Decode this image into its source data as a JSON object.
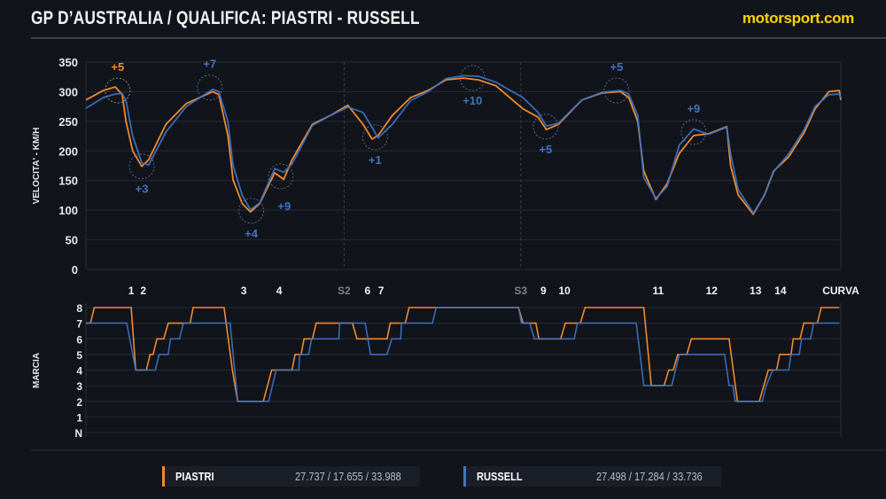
{
  "header": {
    "title": "GP D’AUSTRALIA / QUALIFICA: PIASTRI - RUSSELL",
    "logo": "motorsport.com"
  },
  "colors": {
    "background": "#11141b",
    "piastri": "#f08a2c",
    "russell": "#3f74c4",
    "grid": "#262b36",
    "logo": "#ffd200"
  },
  "legend": [
    {
      "name": "PIASTRI",
      "times": "27.737 / 17.655 / 33.988",
      "color": "#f08a2c"
    },
    {
      "name": "RUSSELL",
      "times": "27.498 / 17.284 / 33.736",
      "color": "#3f74c4"
    }
  ],
  "chart_data": [
    {
      "type": "line",
      "ylabel": "VELOCITA' - KM/H",
      "ylim": [
        0,
        350
      ],
      "yticks": [
        "0",
        "50",
        "100",
        "150",
        "200",
        "250",
        "300",
        "350"
      ],
      "xlim": [
        0,
        100
      ],
      "grid": true,
      "x": [
        0,
        2.3,
        3.9,
        4.8,
        5.3,
        6.2,
        7.4,
        8.3,
        10.6,
        13.3,
        16.8,
        17.6,
        18.8,
        19.5,
        20.7,
        21.8,
        23.0,
        25.0,
        26.2,
        27.3,
        30.0,
        32.4,
        34.7,
        36.7,
        37.9,
        38.7,
        40.6,
        43.0,
        45.3,
        47.7,
        50.0,
        52.0,
        54.3,
        57.9,
        59.9,
        61.0,
        62.6,
        65.7,
        68.4,
        70.8,
        71.9,
        73.1,
        73.9,
        75.5,
        77.0,
        78.6,
        80.5,
        82.5,
        84.9,
        85.4,
        86.4,
        88.4,
        89.9,
        91.1,
        93.1,
        95.1,
        96.6,
        98.4,
        99.8,
        100
      ],
      "series": [
        {
          "name": "PIASTRI",
          "color": "#f08a2c",
          "values": [
            286,
            302,
            308,
            295,
            250,
            200,
            174,
            185,
            245,
            280,
            300,
            295,
            226,
            151,
            111,
            97,
            111,
            163,
            152,
            185,
            245,
            260,
            277,
            245,
            220,
            226,
            260,
            290,
            302,
            320,
            323,
            320,
            310,
            271,
            257,
            236,
            245,
            286,
            298,
            300,
            290,
            250,
            166,
            118,
            145,
            196,
            226,
            229,
            241,
            175,
            126,
            93,
            126,
            166,
            190,
            230,
            271,
            300,
            302,
            286
          ]
        },
        {
          "name": "RUSSELL",
          "color": "#3f74c4",
          "values": [
            272,
            290,
            296,
            297,
            285,
            225,
            180,
            176,
            232,
            275,
            304,
            300,
            250,
            175,
            125,
            101,
            112,
            170,
            164,
            178,
            243,
            260,
            274,
            265,
            240,
            222,
            245,
            285,
            300,
            322,
            327,
            326,
            316,
            290,
            265,
            242,
            247,
            286,
            299,
            302,
            296,
            260,
            155,
            120,
            140,
            210,
            237,
            228,
            240,
            195,
            135,
            95,
            125,
            165,
            195,
            235,
            275,
            295,
            296,
            290
          ]
        }
      ],
      "corners": [
        {
          "label": "1",
          "x": 6.0
        },
        {
          "label": "2",
          "x": 7.6
        },
        {
          "label": "3",
          "x": 20.9
        },
        {
          "label": "4",
          "x": 25.6
        },
        {
          "label": "S2",
          "x": 34.2,
          "sector": true
        },
        {
          "label": "6",
          "x": 37.3
        },
        {
          "label": "7",
          "x": 39.1
        },
        {
          "label": "S3",
          "x": 57.6,
          "sector": true
        },
        {
          "label": "9",
          "x": 60.6
        },
        {
          "label": "10",
          "x": 63.4
        },
        {
          "label": "11",
          "x": 75.8
        },
        {
          "label": "12",
          "x": 82.9
        },
        {
          "label": "13",
          "x": 88.7
        },
        {
          "label": "14",
          "x": 92.0
        },
        {
          "label": "CURVA",
          "x": 100
        }
      ],
      "annotations": [
        {
          "text": "+5",
          "x": 4.2,
          "y": 302,
          "color": "#f08a2c",
          "pos": "above"
        },
        {
          "text": "+3",
          "x": 7.4,
          "y": 174,
          "color": "#3f74c4",
          "pos": "below"
        },
        {
          "text": "+7",
          "x": 16.4,
          "y": 307,
          "color": "#3f74c4",
          "pos": "above"
        },
        {
          "text": "+4",
          "x": 21.9,
          "y": 99,
          "color": "#3f74c4",
          "pos": "below"
        },
        {
          "text": "+9",
          "x": 25.8,
          "y": 157,
          "color": "#3f74c4",
          "pos": "below-right"
        },
        {
          "text": "+1",
          "x": 38.3,
          "y": 223,
          "color": "#3f74c4",
          "pos": "below"
        },
        {
          "text": "+10",
          "x": 51.2,
          "y": 323,
          "color": "#3f74c4",
          "pos": "below"
        },
        {
          "text": "+5",
          "x": 60.9,
          "y": 241,
          "color": "#3f74c4",
          "pos": "below"
        },
        {
          "text": "+5",
          "x": 70.3,
          "y": 302,
          "color": "#3f74c4",
          "pos": "above"
        },
        {
          "text": "+9",
          "x": 80.5,
          "y": 232,
          "color": "#3f74c4",
          "pos": "above"
        }
      ]
    },
    {
      "type": "line",
      "ylabel": "MARCIA",
      "yticks": [
        "N",
        "1",
        "2",
        "3",
        "4",
        "5",
        "6",
        "7",
        "8"
      ],
      "ylim": [
        0,
        8
      ],
      "xlim": [
        0,
        100
      ],
      "grid": true,
      "series": [
        {
          "name": "PIASTRI",
          "color": "#f08a2c",
          "points": [
            [
              0,
              7
            ],
            [
              0.6,
              7
            ],
            [
              1.1,
              8
            ],
            [
              6.0,
              8
            ],
            [
              6.6,
              4
            ],
            [
              8.0,
              4
            ],
            [
              8.5,
              5
            ],
            [
              8.9,
              5
            ],
            [
              9.4,
              6
            ],
            [
              10.3,
              6
            ],
            [
              10.9,
              7
            ],
            [
              13.8,
              7
            ],
            [
              14.2,
              8
            ],
            [
              18.3,
              8
            ],
            [
              19.4,
              4
            ],
            [
              20.1,
              2
            ],
            [
              23.5,
              2
            ],
            [
              24.6,
              4
            ],
            [
              27.3,
              4
            ],
            [
              27.7,
              5
            ],
            [
              28.5,
              5
            ],
            [
              28.9,
              6
            ],
            [
              30.0,
              6
            ],
            [
              30.5,
              7
            ],
            [
              35.3,
              7
            ],
            [
              35.9,
              6
            ],
            [
              39.9,
              6
            ],
            [
              40.3,
              7
            ],
            [
              42.3,
              7
            ],
            [
              42.8,
              8
            ],
            [
              57.3,
              8
            ],
            [
              57.9,
              7
            ],
            [
              59.6,
              7
            ],
            [
              60.0,
              6
            ],
            [
              62.9,
              6
            ],
            [
              63.5,
              7
            ],
            [
              65.5,
              7
            ],
            [
              66.1,
              8
            ],
            [
              73.9,
              8
            ],
            [
              74.9,
              3
            ],
            [
              76.6,
              3
            ],
            [
              77.2,
              4
            ],
            [
              77.8,
              4
            ],
            [
              78.4,
              5
            ],
            [
              79.6,
              5
            ],
            [
              80.2,
              6
            ],
            [
              85.2,
              6
            ],
            [
              86.3,
              2
            ],
            [
              89.2,
              2
            ],
            [
              89.8,
              3
            ],
            [
              90.4,
              4
            ],
            [
              91.5,
              4
            ],
            [
              91.9,
              5
            ],
            [
              93.4,
              5
            ],
            [
              93.7,
              6
            ],
            [
              94.6,
              6
            ],
            [
              95.1,
              7
            ],
            [
              96.9,
              7
            ],
            [
              97.4,
              8
            ],
            [
              99.8,
              8
            ]
          ]
        },
        {
          "name": "RUSSELL",
          "color": "#3f74c4",
          "points": [
            [
              0,
              7
            ],
            [
              5.4,
              7
            ],
            [
              6.6,
              4
            ],
            [
              9.2,
              4
            ],
            [
              9.7,
              5
            ],
            [
              10.9,
              5
            ],
            [
              11.2,
              6
            ],
            [
              12.4,
              6
            ],
            [
              12.9,
              7
            ],
            [
              19.1,
              7
            ],
            [
              20.1,
              2
            ],
            [
              24.2,
              2
            ],
            [
              25.2,
              4
            ],
            [
              28.2,
              4
            ],
            [
              28.3,
              5
            ],
            [
              29.5,
              5
            ],
            [
              29.9,
              6
            ],
            [
              33.5,
              6
            ],
            [
              33.6,
              7
            ],
            [
              37.0,
              7
            ],
            [
              37.7,
              5
            ],
            [
              39.9,
              5
            ],
            [
              40.5,
              6
            ],
            [
              41.7,
              6
            ],
            [
              41.8,
              7
            ],
            [
              45.9,
              7
            ],
            [
              46.4,
              8
            ],
            [
              57.3,
              8
            ],
            [
              57.7,
              7
            ],
            [
              58.8,
              7
            ],
            [
              59.4,
              6
            ],
            [
              64.7,
              6
            ],
            [
              65.1,
              7
            ],
            [
              72.9,
              7
            ],
            [
              73.4,
              5
            ],
            [
              73.9,
              3
            ],
            [
              77.6,
              3
            ],
            [
              78.6,
              5
            ],
            [
              84.6,
              5
            ],
            [
              85.2,
              3
            ],
            [
              85.7,
              3
            ],
            [
              86.0,
              2
            ],
            [
              89.6,
              2
            ],
            [
              90.1,
              3
            ],
            [
              91.0,
              4
            ],
            [
              93.1,
              4
            ],
            [
              93.4,
              5
            ],
            [
              94.5,
              5
            ],
            [
              94.8,
              6
            ],
            [
              96.0,
              6
            ],
            [
              96.4,
              7
            ],
            [
              99.8,
              7
            ]
          ]
        }
      ]
    }
  ]
}
